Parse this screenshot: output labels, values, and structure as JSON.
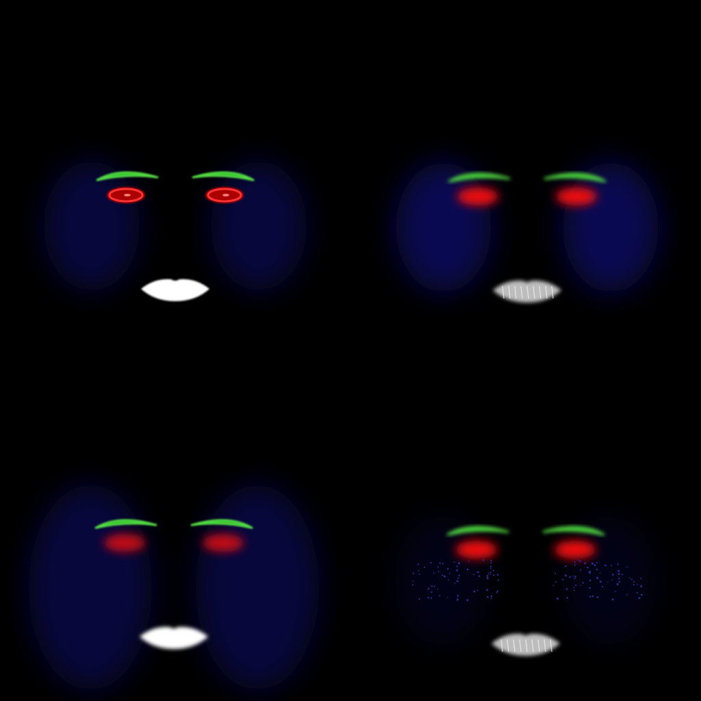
{
  "background": "#000000",
  "palette": {
    "brow": "#22bb22",
    "brow_highlight": "#55dd44",
    "eye": "#ee1111",
    "eye_core": "#ff3333",
    "eye_outline": "#aa0000",
    "cheek": "#0a0a6e",
    "lip": "#ffffff",
    "lip_shadow": "#bdbdbd",
    "speckle": "#2a2a8a"
  },
  "panels": [
    {
      "id": "top-left",
      "brow_style": "sharp",
      "eye_style": "ring",
      "cheek_strength": 0.55,
      "lip_style": "solid",
      "speckles": false
    },
    {
      "id": "top-right",
      "brow_style": "soft",
      "eye_style": "blur",
      "cheek_strength": 0.75,
      "lip_style": "textured",
      "speckles": false
    },
    {
      "id": "bottom-left",
      "brow_style": "sharp",
      "eye_style": "blur-dim",
      "cheek_strength": 0.55,
      "lip_style": "soft",
      "speckles": false
    },
    {
      "id": "bottom-right",
      "brow_style": "soft",
      "eye_style": "blur",
      "cheek_strength": 0.2,
      "lip_style": "textured",
      "speckles": true
    }
  ]
}
